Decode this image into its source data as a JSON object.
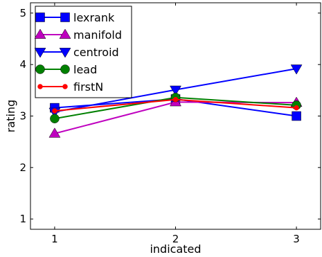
{
  "chart_data": {
    "type": "line",
    "title": "",
    "xlabel": "indicated",
    "ylabel": "rating",
    "x": [
      1,
      2,
      3
    ],
    "xticks": [
      "1",
      "2",
      "3"
    ],
    "yticks": [
      "1",
      "2",
      "3",
      "4",
      "5"
    ],
    "xlim": [
      0.8,
      3.2
    ],
    "ylim": [
      0.8,
      5.2
    ],
    "grid": false,
    "legend_position": "top-left",
    "series": [
      {
        "name": "lexrank",
        "color": "#0000ff",
        "marker": "square",
        "values": [
          3.16,
          3.33,
          3.0
        ]
      },
      {
        "name": "manifold",
        "color": "#bf00bf",
        "marker": "triangle-up",
        "values": [
          2.66,
          3.27,
          3.26
        ]
      },
      {
        "name": "centroid",
        "color": "#0000ff",
        "marker": "triangle-down",
        "values": [
          3.08,
          3.51,
          3.92
        ]
      },
      {
        "name": "lead",
        "color": "#008000",
        "marker": "circle",
        "values": [
          2.95,
          3.36,
          3.21
        ]
      },
      {
        "name": "firstN",
        "color": "#ff0000",
        "marker": "small-circle",
        "values": [
          3.1,
          3.32,
          3.16
        ]
      }
    ]
  }
}
